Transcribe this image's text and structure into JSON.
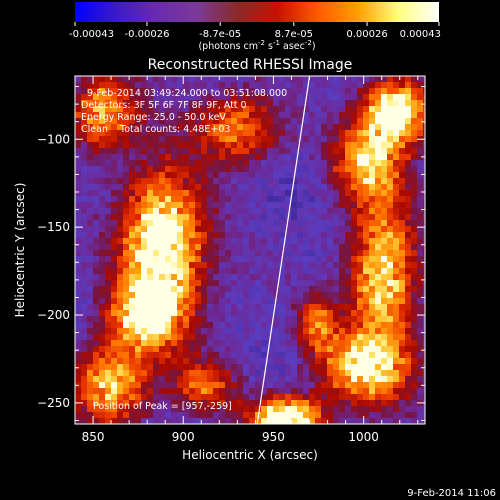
{
  "chart_data": {
    "type": "heatmap",
    "title": "Reconstructed RHESSI Image",
    "xlabel": "Heliocentric X (arcsec)",
    "ylabel": "Heliocentric Y (arcsec)",
    "x_range": [
      840,
      1034
    ],
    "y_range": [
      -262,
      -64
    ],
    "x_ticks": [
      850,
      900,
      950,
      1000
    ],
    "y_ticks": [
      -100,
      -150,
      -200,
      -250
    ],
    "colorbar": {
      "ticks": [
        "-0.00043",
        "-0.00026",
        "-8.7e-05",
        "8.7e-05",
        "0.00026",
        "0.00043"
      ],
      "tick_values": [
        -0.00043,
        -0.00026,
        -8.7e-05,
        8.7e-05,
        0.00026,
        0.00043
      ],
      "units_text": "(photons cm",
      "units_exp1": "-2",
      "units_mid": " s",
      "units_exp2": "-1",
      "units_end": " asec",
      "units_exp3": "-2",
      "units_close": ")",
      "colors": [
        "#0000ff",
        "#3a1ac8",
        "#6a2ab0",
        "#7a3a9a",
        "#8a2a2a",
        "#c81000",
        "#ff5a00",
        "#ffa000",
        "#ffff80",
        "#ffffff"
      ]
    },
    "annotations": [
      "9-Feb-2014 03:49:24.000 to 03:51:08.000",
      "Detectors: 3F 5F 6F 7F 8F 9F, Att 0",
      "Energy Range: 25.0 - 50.0 keV",
      "Clean    Total counts: 4.48E+03"
    ],
    "peak_label": "Position of Peak = [957,-259]",
    "peak": [
      957,
      -259
    ],
    "limb_line": [
      [
        941,
        -262
      ],
      [
        970,
        -64
      ]
    ],
    "blobs": [
      {
        "x": 888,
        "y": -158,
        "sx": 16,
        "sy": 26,
        "amp": 0.95
      },
      {
        "x": 880,
        "y": -200,
        "sx": 14,
        "sy": 14,
        "amp": 0.75
      },
      {
        "x": 860,
        "y": -240,
        "sx": 14,
        "sy": 16,
        "amp": 0.7
      },
      {
        "x": 855,
        "y": -85,
        "sx": 12,
        "sy": 14,
        "amp": 0.6
      },
      {
        "x": 1018,
        "y": -84,
        "sx": 12,
        "sy": 12,
        "amp": 0.95
      },
      {
        "x": 1003,
        "y": -112,
        "sx": 14,
        "sy": 16,
        "amp": 0.65
      },
      {
        "x": 1010,
        "y": -180,
        "sx": 12,
        "sy": 30,
        "amp": 0.75
      },
      {
        "x": 1000,
        "y": -230,
        "sx": 18,
        "sy": 14,
        "amp": 0.75
      },
      {
        "x": 957,
        "y": -258,
        "sx": 14,
        "sy": 8,
        "amp": 1.0
      },
      {
        "x": 975,
        "y": -205,
        "sx": 8,
        "sy": 10,
        "amp": 0.5
      },
      {
        "x": 930,
        "y": -95,
        "sx": 16,
        "sy": 14,
        "amp": 0.55
      },
      {
        "x": 912,
        "y": -240,
        "sx": 12,
        "sy": 10,
        "amp": 0.45
      }
    ]
  },
  "timestamp": "9-Feb-2014 11:06"
}
